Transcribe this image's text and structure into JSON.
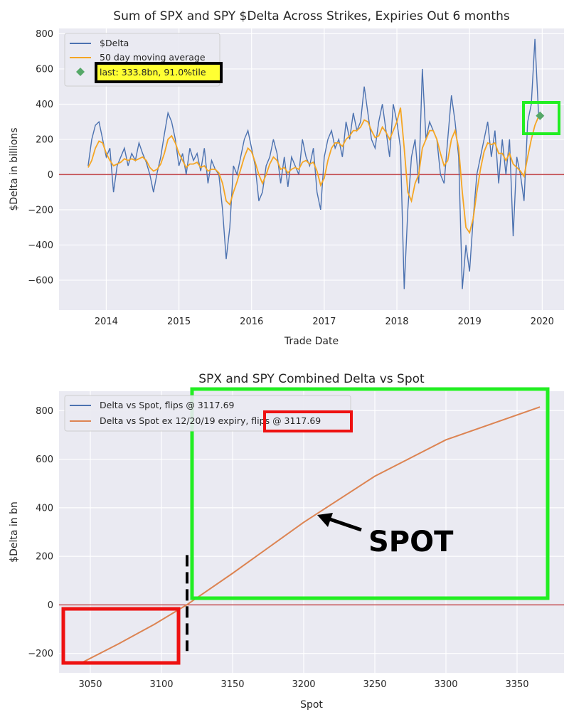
{
  "colors": {
    "plot_bg": "#eaeaf2",
    "grid": "#ffffff",
    "delta_line": "#4c72b0",
    "ma_line": "#f5a623",
    "last_marker": "#55a868",
    "zero_line": "#c44e52",
    "spot_curve": "#dd8452",
    "highlight_green": "#22ee22",
    "highlight_red": "#ee1111",
    "legend_highlight": "#ffff33"
  },
  "chart_data": [
    {
      "type": "line",
      "title": "Sum of SPX and SPY $Delta Across Strikes, Expiries Out 6 months",
      "xlabel": "Trade Date",
      "ylabel": "$Delta in billions",
      "xlim": [
        2013.35,
        2020.3
      ],
      "ylim": [
        -770,
        830
      ],
      "xticks": [
        2014,
        2015,
        2016,
        2017,
        2018,
        2019,
        2020
      ],
      "xtick_labels": [
        "2014",
        "2015",
        "2016",
        "2017",
        "2018",
        "2019",
        "2020"
      ],
      "yticks": [
        -600,
        -400,
        -200,
        0,
        200,
        400,
        600,
        800
      ],
      "ytick_labels": [
        "−600",
        "−400",
        "−200",
        "0",
        "200",
        "400",
        "600",
        "800"
      ],
      "grid": true,
      "legend_position": "top-left",
      "series": [
        {
          "name": "$Delta",
          "x": [
            2013.75,
            2013.8,
            2013.85,
            2013.9,
            2013.95,
            2014.0,
            2014.05,
            2014.1,
            2014.15,
            2014.2,
            2014.25,
            2014.3,
            2014.35,
            2014.4,
            2014.45,
            2014.5,
            2014.55,
            2014.6,
            2014.65,
            2014.7,
            2014.75,
            2014.8,
            2014.85,
            2014.9,
            2014.95,
            2015.0,
            2015.05,
            2015.1,
            2015.15,
            2015.2,
            2015.25,
            2015.3,
            2015.35,
            2015.4,
            2015.45,
            2015.5,
            2015.55,
            2015.6,
            2015.65,
            2015.7,
            2015.75,
            2015.8,
            2015.85,
            2015.9,
            2015.95,
            2016.0,
            2016.05,
            2016.1,
            2016.15,
            2016.2,
            2016.25,
            2016.3,
            2016.35,
            2016.4,
            2016.45,
            2016.5,
            2016.55,
            2016.6,
            2016.65,
            2016.7,
            2016.75,
            2016.8,
            2016.85,
            2016.9,
            2016.95,
            2017.0,
            2017.05,
            2017.1,
            2017.15,
            2017.2,
            2017.25,
            2017.3,
            2017.35,
            2017.4,
            2017.45,
            2017.5,
            2017.55,
            2017.6,
            2017.65,
            2017.7,
            2017.75,
            2017.8,
            2017.85,
            2017.9,
            2017.95,
            2018.0,
            2018.05,
            2018.1,
            2018.15,
            2018.2,
            2018.25,
            2018.3,
            2018.35,
            2018.4,
            2018.45,
            2018.5,
            2018.55,
            2018.6,
            2018.65,
            2018.7,
            2018.75,
            2018.8,
            2018.85,
            2018.9,
            2018.95,
            2019.0,
            2019.05,
            2019.1,
            2019.15,
            2019.2,
            2019.25,
            2019.3,
            2019.35,
            2019.4,
            2019.45,
            2019.5,
            2019.55,
            2019.6,
            2019.65,
            2019.7,
            2019.75,
            2019.8,
            2019.85,
            2019.9,
            2019.95
          ],
          "values": [
            50,
            200,
            280,
            300,
            200,
            100,
            150,
            -100,
            50,
            100,
            150,
            50,
            120,
            80,
            180,
            120,
            70,
            0,
            -100,
            10,
            100,
            230,
            350,
            300,
            200,
            50,
            120,
            0,
            150,
            80,
            120,
            20,
            150,
            -50,
            80,
            30,
            0,
            -200,
            -480,
            -300,
            50,
            0,
            100,
            200,
            250,
            150,
            50,
            -150,
            -100,
            50,
            100,
            200,
            120,
            -50,
            100,
            -70,
            100,
            50,
            0,
            200,
            100,
            50,
            150,
            -100,
            -200,
            100,
            200,
            250,
            150,
            200,
            100,
            300,
            200,
            350,
            250,
            300,
            500,
            350,
            200,
            150,
            300,
            400,
            250,
            100,
            400,
            300,
            150,
            -650,
            -200,
            100,
            200,
            -50,
            600,
            200,
            300,
            250,
            200,
            0,
            -50,
            200,
            450,
            300,
            100,
            -650,
            -400,
            -550,
            -250,
            0,
            100,
            200,
            300,
            100,
            250,
            -50,
            200,
            0,
            200,
            -350,
            100,
            0,
            -150,
            300,
            400,
            770,
            340
          ]
        },
        {
          "name": "50 day moving average",
          "x": [
            2013.75,
            2013.8,
            2013.85,
            2013.9,
            2013.95,
            2014.0,
            2014.05,
            2014.1,
            2014.15,
            2014.2,
            2014.25,
            2014.3,
            2014.35,
            2014.4,
            2014.45,
            2014.5,
            2014.55,
            2014.6,
            2014.65,
            2014.7,
            2014.75,
            2014.8,
            2014.85,
            2014.9,
            2014.95,
            2015.0,
            2015.05,
            2015.1,
            2015.15,
            2015.2,
            2015.25,
            2015.3,
            2015.35,
            2015.4,
            2015.45,
            2015.5,
            2015.55,
            2015.6,
            2015.65,
            2015.7,
            2015.75,
            2015.8,
            2015.85,
            2015.9,
            2015.95,
            2016.0,
            2016.05,
            2016.1,
            2016.15,
            2016.2,
            2016.25,
            2016.3,
            2016.35,
            2016.4,
            2016.45,
            2016.5,
            2016.55,
            2016.6,
            2016.65,
            2016.7,
            2016.75,
            2016.8,
            2016.85,
            2016.9,
            2016.95,
            2017.0,
            2017.05,
            2017.1,
            2017.15,
            2017.2,
            2017.25,
            2017.3,
            2017.35,
            2017.4,
            2017.45,
            2017.5,
            2017.55,
            2017.6,
            2017.65,
            2017.7,
            2017.75,
            2017.8,
            2017.85,
            2017.9,
            2017.95,
            2018.0,
            2018.05,
            2018.1,
            2018.15,
            2018.2,
            2018.25,
            2018.3,
            2018.35,
            2018.4,
            2018.45,
            2018.5,
            2018.55,
            2018.6,
            2018.65,
            2018.7,
            2018.75,
            2018.8,
            2018.85,
            2018.9,
            2018.95,
            2019.0,
            2019.05,
            2019.1,
            2019.15,
            2019.2,
            2019.25,
            2019.3,
            2019.35,
            2019.4,
            2019.45,
            2019.5,
            2019.55,
            2019.6,
            2019.65,
            2019.7,
            2019.75,
            2019.8,
            2019.85,
            2019.9,
            2019.95
          ],
          "values": [
            40,
            80,
            150,
            190,
            180,
            120,
            80,
            50,
            60,
            70,
            90,
            80,
            90,
            80,
            90,
            100,
            80,
            40,
            20,
            30,
            60,
            120,
            200,
            220,
            180,
            120,
            80,
            40,
            60,
            60,
            70,
            40,
            50,
            20,
            30,
            30,
            10,
            -50,
            -150,
            -170,
            -100,
            -40,
            30,
            100,
            150,
            130,
            70,
            0,
            -50,
            0,
            60,
            100,
            80,
            30,
            40,
            10,
            30,
            40,
            30,
            70,
            80,
            60,
            70,
            20,
            -60,
            -20,
            80,
            150,
            180,
            180,
            160,
            200,
            220,
            250,
            250,
            270,
            310,
            300,
            250,
            210,
            220,
            270,
            240,
            200,
            250,
            300,
            380,
            150,
            -100,
            -150,
            -50,
            0,
            150,
            200,
            250,
            250,
            200,
            120,
            50,
            80,
            200,
            250,
            150,
            -100,
            -300,
            -330,
            -250,
            -100,
            30,
            130,
            180,
            170,
            180,
            120,
            120,
            80,
            120,
            60,
            40,
            20,
            -10,
            100,
            200,
            280,
            330
          ]
        }
      ],
      "annotations": [
        {
          "type": "marker",
          "x": 2019.97,
          "y": 333.8,
          "label": "last: 333.8bn, 91.0%tile"
        }
      ]
    },
    {
      "type": "line",
      "title": "SPX and SPY Combined Delta vs Spot",
      "xlabel": "Spot",
      "ylabel": "$Delta in bn",
      "xlim": [
        3028,
        3383
      ],
      "ylim": [
        -280,
        880
      ],
      "xticks": [
        3050,
        3100,
        3150,
        3200,
        3250,
        3300,
        3350
      ],
      "xtick_labels": [
        "3050",
        "3100",
        "3150",
        "3200",
        "3250",
        "3300",
        "3350"
      ],
      "yticks": [
        -200,
        0,
        200,
        400,
        600,
        800
      ],
      "ytick_labels": [
        "−200",
        "0",
        "200",
        "400",
        "600",
        "800"
      ],
      "grid": true,
      "legend_position": "top-left",
      "series": [
        {
          "name": "Delta vs Spot, flips @ 3117.69",
          "x": [
            3045,
            3070,
            3095,
            3117.69,
            3150,
            3200,
            3250,
            3300,
            3366
          ],
          "values": [
            -235,
            -160,
            -80,
            0,
            130,
            340,
            530,
            680,
            815
          ]
        },
        {
          "name": "Delta vs Spot ex 12/20/19 expiry, flips @ 3117.69",
          "x": [
            3045,
            3070,
            3095,
            3117.69,
            3150,
            3200,
            3250,
            3300,
            3366
          ],
          "values": [
            -235,
            -160,
            -80,
            0,
            130,
            340,
            530,
            680,
            815
          ]
        }
      ],
      "annotations": [
        {
          "type": "arrow_label",
          "text": "SPOT",
          "x": 3207,
          "y": 365
        },
        {
          "type": "vline_dashed",
          "x": 3118,
          "y_range": [
            -190,
            205
          ]
        }
      ]
    }
  ]
}
